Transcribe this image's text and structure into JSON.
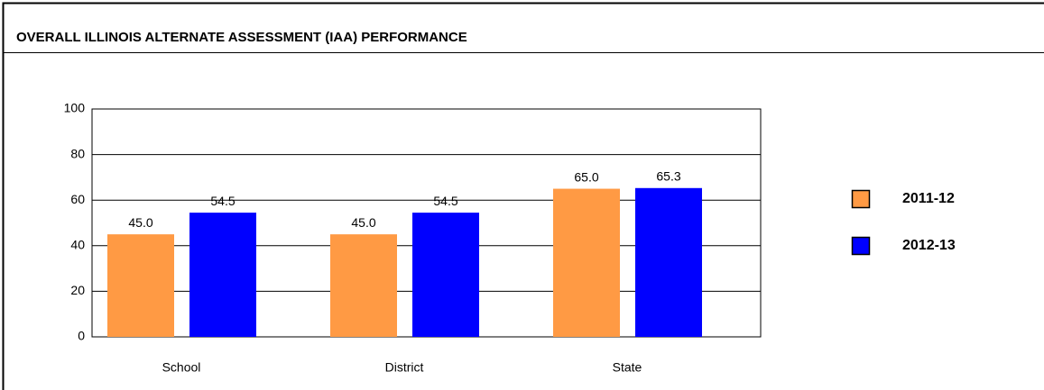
{
  "chart_data": {
    "type": "bar",
    "title": "OVERALL ILLINOIS ALTERNATE ASSESSMENT (IAA) PERFORMANCE",
    "categories": [
      "School",
      "District",
      "State"
    ],
    "series": [
      {
        "name": "2011-12",
        "color": "#ff9a44",
        "values": [
          45,
          45,
          65
        ],
        "value_labels": [
          "45.0",
          "45.0",
          "65.0"
        ]
      },
      {
        "name": "2012-13",
        "color": "#0000ff",
        "values": [
          54.5,
          54.5,
          65.3
        ]
      }
    ],
    "ylim": [
      0,
      100
    ],
    "yticks": [
      0,
      20,
      40,
      60,
      80,
      100
    ],
    "grid": true,
    "legend": "right"
  }
}
